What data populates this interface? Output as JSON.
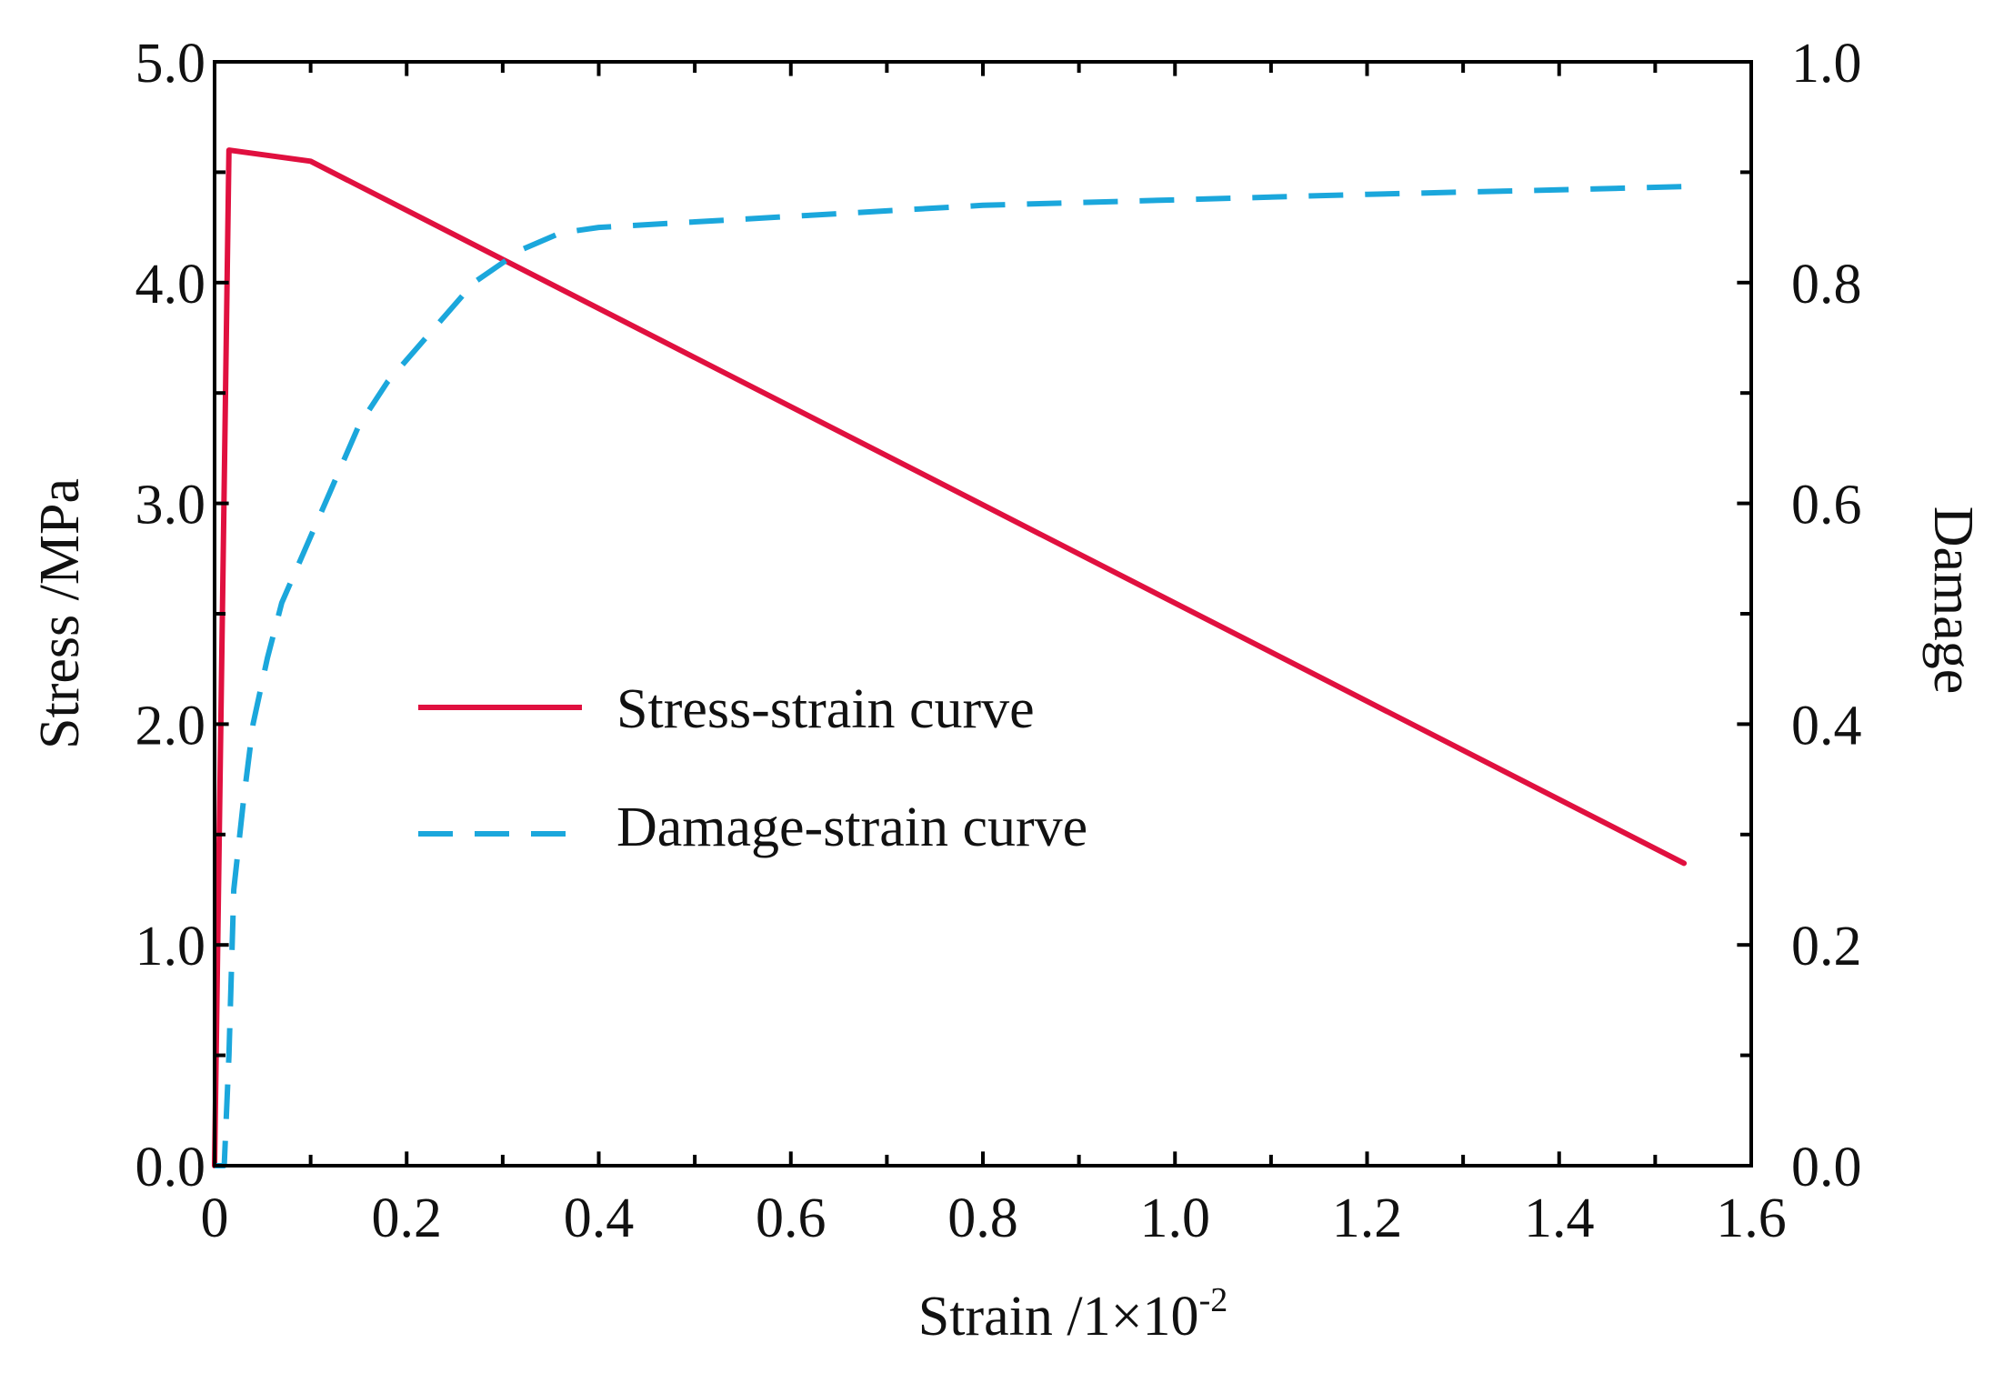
{
  "chart_data": {
    "type": "line",
    "title": "",
    "xlabel": "Strain /1×10",
    "xlabel_exponent": "-2",
    "ylabel_left": "Stress /MPa",
    "ylabel_right": "Damage",
    "xlim": [
      0,
      1.6
    ],
    "ylim_left": [
      0,
      5.0
    ],
    "ylim_right": [
      0,
      1.0
    ],
    "x_ticks": [
      "0",
      "0.2",
      "0.4",
      "0.6",
      "0.8",
      "1.0",
      "1.2",
      "1.4",
      "1.6"
    ],
    "x_tick_values": [
      0,
      0.2,
      0.4,
      0.6,
      0.8,
      1.0,
      1.2,
      1.4,
      1.6
    ],
    "y_left_ticks": [
      "0.0",
      "1.0",
      "2.0",
      "3.0",
      "4.0",
      "5.0"
    ],
    "y_left_tick_values": [
      0,
      1,
      2,
      3,
      4,
      5
    ],
    "y_right_ticks": [
      "0.0",
      "0.2",
      "0.4",
      "0.6",
      "0.8",
      "1.0"
    ],
    "y_right_tick_values": [
      0,
      0.2,
      0.4,
      0.6,
      0.8,
      1.0
    ],
    "grid": false,
    "legend_position": "center-left",
    "series": [
      {
        "name": "Stress-strain curve",
        "axis": "left",
        "color": "#e0103f",
        "dash": "solid",
        "x": [
          0,
          0.015,
          0.1,
          1.53
        ],
        "y": [
          0,
          4.6,
          4.55,
          1.37
        ]
      },
      {
        "name": "Damage-strain curve",
        "axis": "right",
        "color": "#1ba7dc",
        "dash": "dashed",
        "x": [
          0,
          0.01,
          0.015,
          0.02,
          0.03,
          0.04,
          0.055,
          0.07,
          0.09,
          0.12,
          0.15,
          0.18,
          0.22,
          0.27,
          0.32,
          0.36,
          0.4,
          0.6,
          0.8,
          1.0,
          1.2,
          1.4,
          1.53
        ],
        "y": [
          0,
          0,
          0.1,
          0.25,
          0.33,
          0.4,
          0.46,
          0.51,
          0.55,
          0.61,
          0.67,
          0.71,
          0.75,
          0.8,
          0.83,
          0.845,
          0.85,
          0.86,
          0.87,
          0.875,
          0.88,
          0.884,
          0.887
        ]
      }
    ]
  }
}
